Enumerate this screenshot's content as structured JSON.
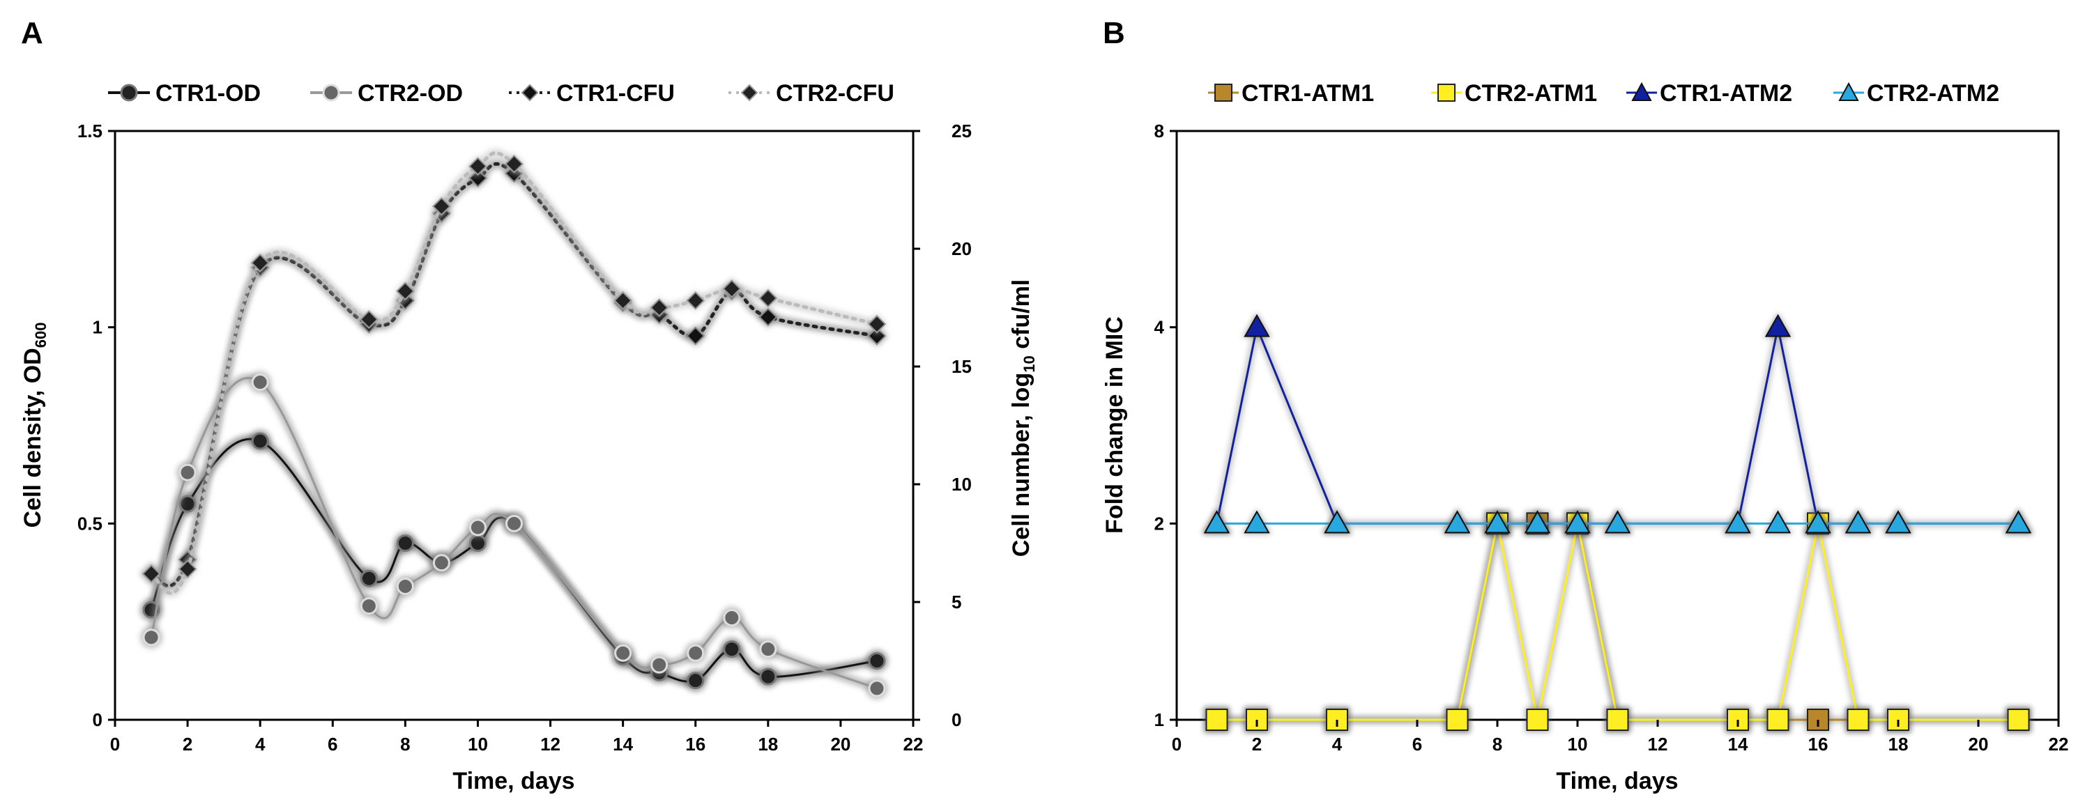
{
  "chart_data": [
    {
      "type": "line",
      "panel_label": "A",
      "xlabel": "Time, days",
      "ylabel": "Cell density, OD",
      "ylabel_sub": "600",
      "y2label_pre": "Cell number, log",
      "y2label_sub": "10",
      "y2label_post": " cfu/ml",
      "xlim": [
        0,
        22
      ],
      "ylim": [
        0,
        1.5
      ],
      "y2lim": [
        0,
        25
      ],
      "x_ticks": [
        "0",
        "2",
        "4",
        "6",
        "8",
        "10",
        "12",
        "14",
        "16",
        "18",
        "20",
        "22"
      ],
      "y_ticks": [
        "0",
        "0.5",
        "1",
        "1.5"
      ],
      "y2_ticks": [
        "0",
        "5",
        "10",
        "15",
        "20",
        "25"
      ],
      "grid": false,
      "legend_position": "top",
      "series": [
        {
          "name": "CTR1-OD",
          "axis": "left",
          "color": "#111111",
          "x": [
            1,
            2,
            4,
            7,
            8,
            9,
            10,
            11,
            14,
            15,
            16,
            17,
            18,
            21
          ],
          "y": [
            0.28,
            0.55,
            0.71,
            0.36,
            0.45,
            0.4,
            0.45,
            0.5,
            0.16,
            0.12,
            0.1,
            0.18,
            0.11,
            0.15
          ]
        },
        {
          "name": "CTR2-OD",
          "axis": "left",
          "color": "#999999",
          "x": [
            1,
            2,
            4,
            7,
            8,
            9,
            10,
            11,
            14,
            15,
            16,
            17,
            18,
            21
          ],
          "y": [
            0.21,
            0.63,
            0.86,
            0.29,
            0.34,
            0.4,
            0.49,
            0.5,
            0.17,
            0.14,
            0.17,
            0.26,
            0.18,
            0.08
          ]
        },
        {
          "name": "CTR1-CFU",
          "axis": "right",
          "color": "#222222",
          "x": [
            1,
            2,
            4,
            7,
            8,
            9,
            10,
            11,
            14,
            15,
            16,
            17,
            18,
            21
          ],
          "y": [
            6.2,
            6.8,
            19.2,
            16.8,
            17.8,
            21.5,
            23.0,
            23.2,
            17.7,
            17.2,
            16.3,
            18.2,
            17.1,
            16.3
          ]
        },
        {
          "name": "CTR2-CFU",
          "axis": "right",
          "color": "#bbbbbb",
          "x": [
            1,
            2,
            4,
            7,
            8,
            9,
            10,
            11,
            14,
            15,
            16,
            17,
            18,
            21
          ],
          "y": [
            6.2,
            6.4,
            19.4,
            17.0,
            18.2,
            21.8,
            23.5,
            23.6,
            17.8,
            17.5,
            17.8,
            18.3,
            17.9,
            16.8
          ]
        }
      ]
    },
    {
      "type": "line",
      "panel_label": "B",
      "xlabel": "Time, days",
      "ylabel": "Fold change in MIC",
      "xlim": [
        0,
        22
      ],
      "yscale": "log2",
      "ylim": [
        1,
        8
      ],
      "x_ticks": [
        "0",
        "2",
        "4",
        "6",
        "8",
        "10",
        "12",
        "14",
        "16",
        "18",
        "20",
        "22"
      ],
      "y_ticks": [
        "1",
        "2",
        "4",
        "8"
      ],
      "grid": false,
      "legend_position": "top",
      "series": [
        {
          "name": "CTR1-ATM1",
          "color": "#b8862b",
          "marker": "square",
          "x": [
            1,
            2,
            4,
            7,
            8,
            9,
            10,
            11,
            14,
            15,
            16,
            17,
            18,
            21
          ],
          "y": [
            1,
            1,
            1,
            1,
            2,
            2,
            2,
            1,
            1,
            1,
            1,
            1,
            1,
            1
          ]
        },
        {
          "name": "CTR2-ATM1",
          "color": "#ffee22",
          "marker": "square",
          "x": [
            1,
            2,
            4,
            7,
            8,
            9,
            10,
            11,
            14,
            15,
            16,
            17,
            18,
            21
          ],
          "y": [
            1,
            1,
            1,
            1,
            2,
            1,
            2,
            1,
            1,
            1,
            2,
            1,
            1,
            1
          ]
        },
        {
          "name": "CTR1-ATM2",
          "color": "#1020a0",
          "marker": "triangle",
          "x": [
            1,
            2,
            4,
            7,
            8,
            9,
            10,
            11,
            14,
            15,
            16,
            17,
            18,
            21
          ],
          "y": [
            2,
            4,
            2,
            2,
            2,
            2,
            2,
            2,
            2,
            4,
            2,
            2,
            2,
            2
          ]
        },
        {
          "name": "CTR2-ATM2",
          "color": "#29a8e0",
          "marker": "triangle",
          "x": [
            1,
            2,
            4,
            7,
            8,
            9,
            10,
            11,
            14,
            15,
            16,
            17,
            18,
            21
          ],
          "y": [
            2,
            2,
            2,
            2,
            2,
            2,
            2,
            2,
            2,
            2,
            2,
            2,
            2,
            2
          ]
        }
      ]
    }
  ]
}
